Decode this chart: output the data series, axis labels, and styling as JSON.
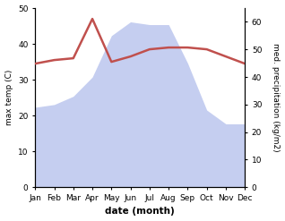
{
  "months": [
    "Jan",
    "Feb",
    "Mar",
    "Apr",
    "May",
    "Jun",
    "Jul",
    "Aug",
    "Sep",
    "Oct",
    "Nov",
    "Dec"
  ],
  "temperature": [
    34.5,
    35.5,
    36.0,
    47.0,
    35.0,
    36.5,
    38.5,
    39.0,
    39.0,
    38.5,
    36.5,
    34.5
  ],
  "precipitation": [
    29,
    30,
    33,
    40,
    55,
    60,
    59,
    59,
    45,
    28,
    23,
    23
  ],
  "temp_color": "#c0504d",
  "precip_fill_color": "#c5cef0",
  "ylim_left": [
    0,
    50
  ],
  "ylim_right": [
    0,
    65
  ],
  "yticks_left": [
    0,
    10,
    20,
    30,
    40,
    50
  ],
  "yticks_right": [
    0,
    10,
    20,
    30,
    40,
    50,
    60
  ],
  "ylabel_left": "max temp (C)",
  "ylabel_right": "med. precipitation (kg/m2)",
  "xlabel": "date (month)",
  "bg_color": "#ffffff",
  "line_width": 1.8
}
